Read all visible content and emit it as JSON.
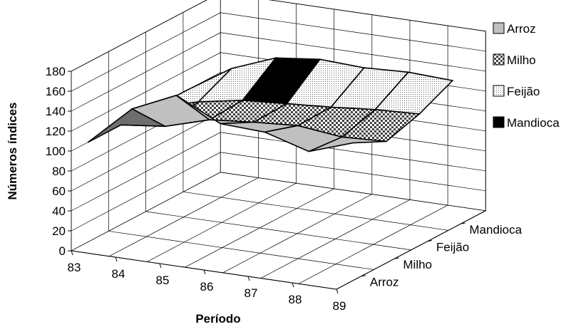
{
  "chart_data": {
    "type": "surface",
    "title": "",
    "xlabel": "Período",
    "ylabel": "Números índices",
    "zlabel": "",
    "x": [
      "83",
      "84",
      "85",
      "86",
      "87",
      "88",
      "89"
    ],
    "depth_categories": [
      "Arroz",
      "Milho",
      "Feijão",
      "Mandioca"
    ],
    "ylim": [
      0,
      180
    ],
    "yticks": [
      "0",
      "20",
      "40",
      "60",
      "80",
      "100",
      "120",
      "140",
      "160",
      "180"
    ],
    "grid": true,
    "legend_position": "right",
    "series": [
      {
        "name": "Arroz",
        "values": [
          100,
          140,
          160,
          138,
          136,
          123,
          138
        ],
        "color": "#c0c0c0"
      },
      {
        "name": "Milho",
        "values": [
          100,
          105,
          118,
          122,
          125,
          120,
          122
        ],
        "color": "#a0a0a0"
      },
      {
        "name": "Feijão",
        "values": [
          100,
          112,
          120,
          123,
          126,
          130,
          132
        ],
        "color": "#e0e0e0"
      },
      {
        "name": "Mandioca",
        "values": [
          100,
          128,
          145,
          150,
          148,
          150,
          148
        ],
        "color": "#000000"
      }
    ],
    "legend": [
      {
        "label": "Arroz",
        "swatch": "#c0c0c0"
      },
      {
        "label": "Milho",
        "swatch": "#a0a0a0"
      },
      {
        "label": "Feijão",
        "swatch": "#e0e0e0"
      },
      {
        "label": "Mandioca",
        "swatch": "#000000"
      }
    ]
  }
}
